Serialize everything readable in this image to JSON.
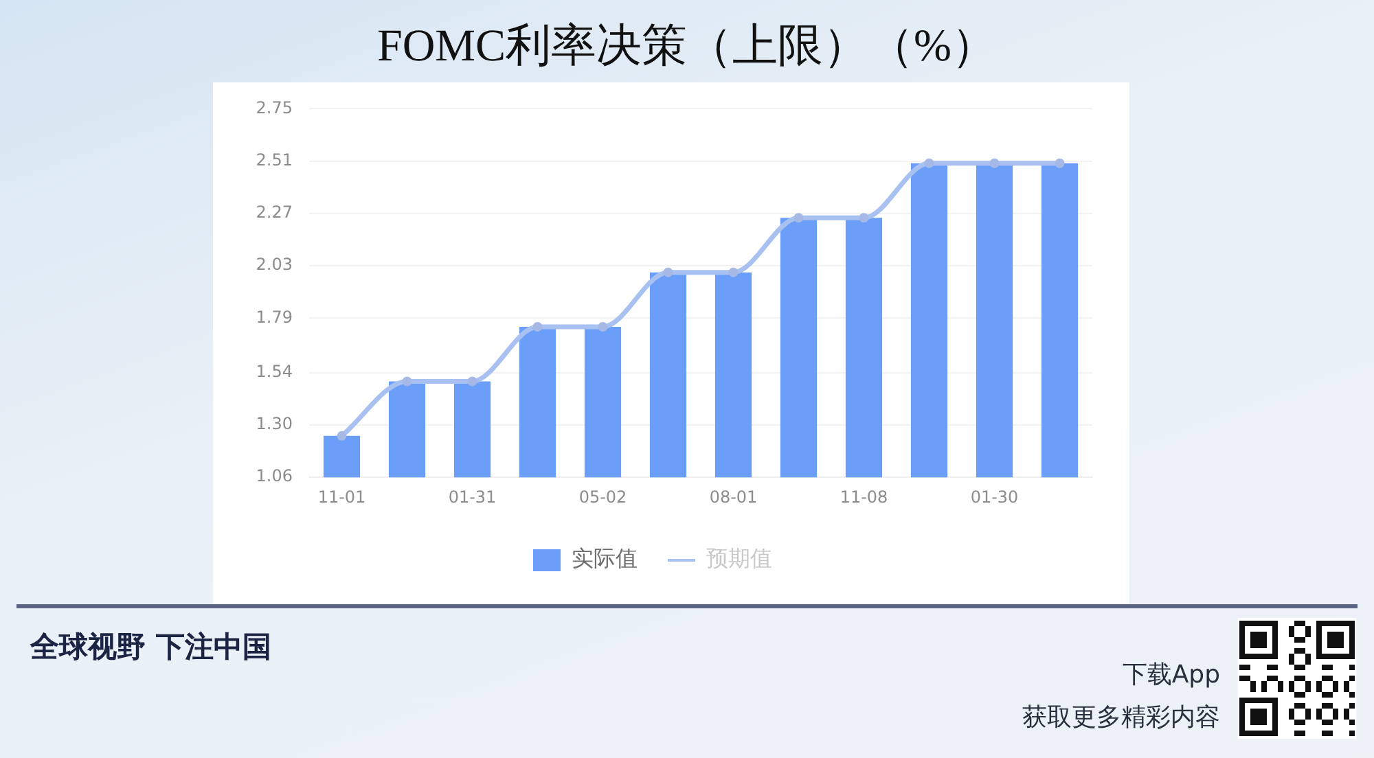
{
  "chart_data": {
    "type": "bar",
    "title": "FOMC利率决策（上限）（%）",
    "categories": [
      "11-01",
      null,
      "01-31",
      null,
      "05-02",
      null,
      "08-01",
      null,
      "11-08",
      null,
      "01-30",
      null
    ],
    "series": [
      {
        "name": "实际值",
        "color": "#6b9ef9",
        "values": [
          1.25,
          1.5,
          1.5,
          1.75,
          1.75,
          2.0,
          2.0,
          2.25,
          2.25,
          2.5,
          2.5,
          2.5
        ]
      },
      {
        "name": "预期值",
        "type": "line",
        "color": "#a9c1f0",
        "values": [
          1.25,
          1.5,
          1.5,
          1.75,
          1.75,
          2.0,
          2.0,
          2.25,
          2.25,
          2.5,
          2.5,
          2.5
        ]
      }
    ],
    "ylim": [
      1.06,
      2.75
    ],
    "yticks": [
      1.06,
      {
        "value": 1.3,
        "label": "1.30"
      },
      1.54,
      1.79,
      2.03,
      2.27,
      2.51,
      2.75
    ],
    "grid": "y",
    "legend": "bottom",
    "marker": "circle",
    "line_style": "solid",
    "annotations": [
      "全球视野 下注中国",
      "下载App",
      "获取更多精彩内容"
    ]
  }
}
